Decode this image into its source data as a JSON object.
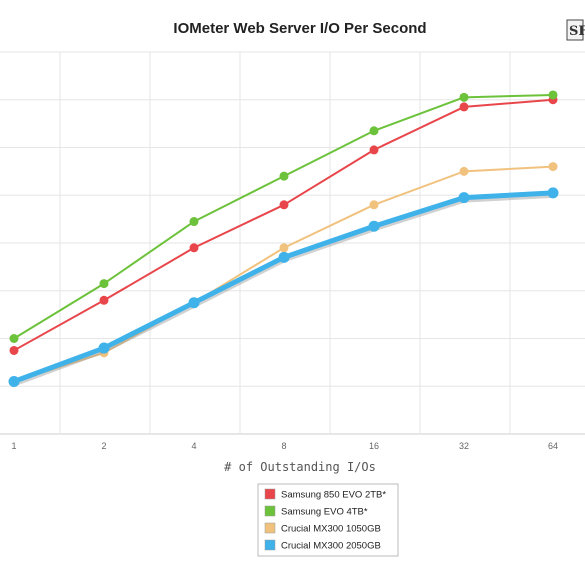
{
  "chart_data": {
    "type": "line",
    "title": "IOMeter Web Server I/O Per Second",
    "xlabel": "# of Outstanding I/Os",
    "ylabel": "",
    "categories": [
      "1",
      "2",
      "4",
      "8",
      "16",
      "32",
      "64"
    ],
    "ylim": [
      0,
      8
    ],
    "grid": true,
    "legend_position": "bottom-center",
    "series": [
      {
        "name": "Samsung 850 EVO 2TB*",
        "color": "#e8464a",
        "values": [
          1.75,
          2.8,
          3.9,
          4.8,
          5.95,
          6.85,
          7.0
        ]
      },
      {
        "name": "Samsung EVO 4TB*",
        "color": "#6cc23a",
        "values": [
          2.0,
          3.15,
          4.45,
          5.4,
          6.35,
          7.05,
          7.1
        ]
      },
      {
        "name": "Crucial MX300 1050GB",
        "color": "#f0c27e",
        "values": [
          1.1,
          1.7,
          2.75,
          3.9,
          4.8,
          5.5,
          5.6
        ]
      },
      {
        "name": "Crucial MX300 2050GB",
        "color": "#3fb2ea",
        "values": [
          1.1,
          1.8,
          2.75,
          3.7,
          4.35,
          4.95,
          5.05
        ]
      }
    ]
  },
  "logo": {
    "name": "site-logo-icon",
    "text": "SF"
  }
}
